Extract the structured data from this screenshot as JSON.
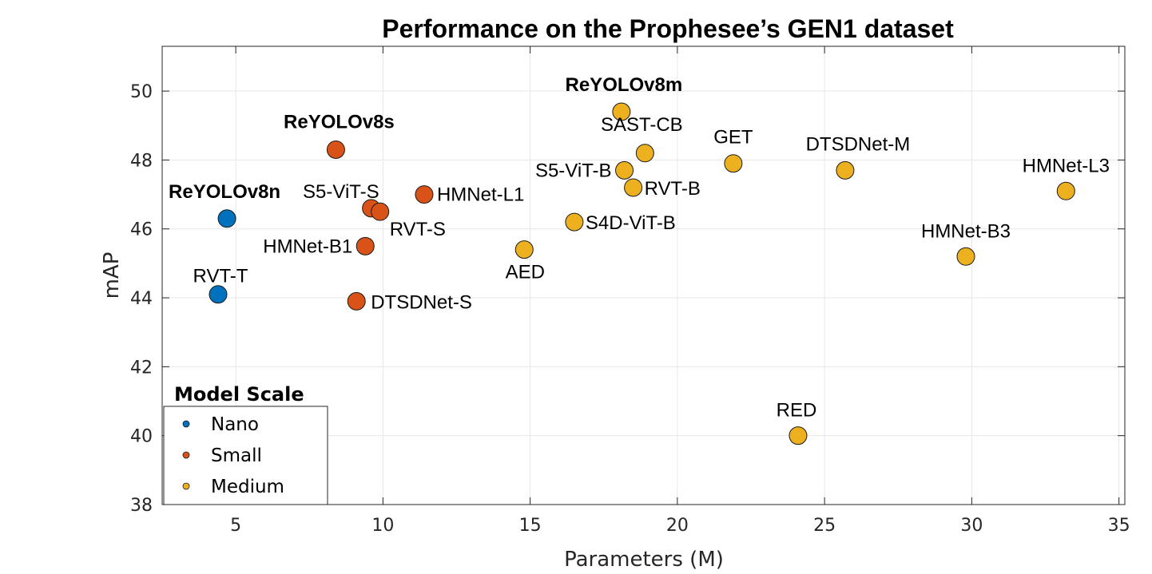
{
  "chart_data": {
    "type": "scatter",
    "title": "Performance on the Prophesee’s GEN1 dataset",
    "xlabel": "Parameters (M)",
    "ylabel": "mAP",
    "xlim": [
      2.5,
      35.2
    ],
    "ylim": [
      38,
      51.3
    ],
    "xticks": [
      5,
      10,
      15,
      20,
      25,
      30,
      35
    ],
    "yticks": [
      38,
      40,
      42,
      44,
      46,
      48,
      50
    ],
    "grid": true,
    "legend": {
      "title": "Model Scale",
      "placement": "bottom-left",
      "entries": [
        "Nano",
        "Small",
        "Medium"
      ]
    },
    "colors": {
      "Nano": "#0072BD",
      "Small": "#D95319",
      "Medium": "#EDB120"
    },
    "series": [
      {
        "name": "Nano",
        "points": [
          {
            "label": "ReYOLOv8n",
            "x": 4.7,
            "y": 46.3,
            "bold": true
          },
          {
            "label": "RVT-T",
            "x": 4.4,
            "y": 44.1,
            "bold": false
          }
        ]
      },
      {
        "name": "Small",
        "points": [
          {
            "label": "ReYOLOv8s",
            "x": 8.4,
            "y": 48.3,
            "bold": true
          },
          {
            "label": "S5-ViT-S",
            "x": 9.6,
            "y": 46.6,
            "bold": false
          },
          {
            "label": "RVT-S",
            "x": 9.9,
            "y": 46.5,
            "bold": false
          },
          {
            "label": "HMNet-L1",
            "x": 11.4,
            "y": 47.0,
            "bold": false
          },
          {
            "label": "HMNet-B1",
            "x": 9.4,
            "y": 45.5,
            "bold": false
          },
          {
            "label": "DTSDNet-S",
            "x": 9.1,
            "y": 43.9,
            "bold": false
          }
        ]
      },
      {
        "name": "Medium",
        "points": [
          {
            "label": "ReYOLOv8m",
            "x": 18.1,
            "y": 49.4,
            "bold": true
          },
          {
            "label": "SAST-CB",
            "x": 18.9,
            "y": 48.2,
            "bold": false
          },
          {
            "label": "S5-ViT-B",
            "x": 18.2,
            "y": 47.7,
            "bold": false
          },
          {
            "label": "RVT-B",
            "x": 18.5,
            "y": 47.2,
            "bold": false
          },
          {
            "label": "GET",
            "x": 21.9,
            "y": 47.9,
            "bold": false
          },
          {
            "label": "DTSDNet-M",
            "x": 25.7,
            "y": 47.7,
            "bold": false
          },
          {
            "label": "HMNet-L3",
            "x": 33.2,
            "y": 47.1,
            "bold": false
          },
          {
            "label": "S4D-ViT-B",
            "x": 16.5,
            "y": 46.2,
            "bold": false
          },
          {
            "label": "AED",
            "x": 14.8,
            "y": 45.4,
            "bold": false
          },
          {
            "label": "HMNet-B3",
            "x": 29.8,
            "y": 45.2,
            "bold": false
          },
          {
            "label": "RED",
            "x": 24.1,
            "y": 40.0,
            "bold": false
          }
        ]
      }
    ]
  }
}
